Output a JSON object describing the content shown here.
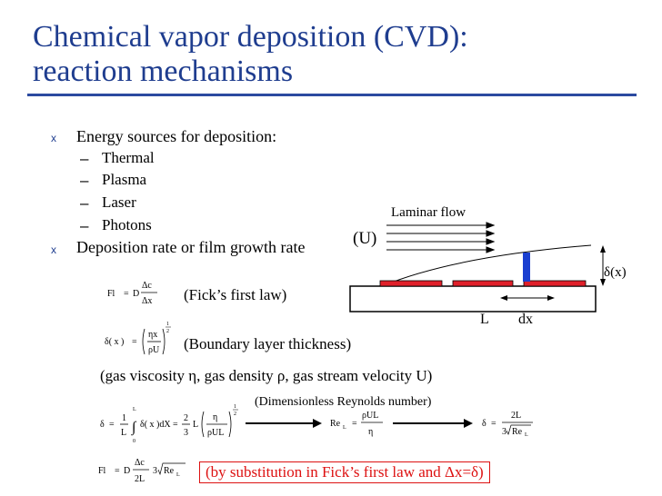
{
  "slide": {
    "title_line1": "Chemical vapor deposition (CVD):",
    "title_line2": "reaction mechanisms",
    "bullet_mark": "x",
    "bullets": [
      {
        "text": "Energy sources for deposition:",
        "sub": [
          "Thermal",
          "Plasma",
          "Laser",
          "Photons"
        ]
      },
      {
        "text": "Deposition rate or film growth rate"
      }
    ],
    "sub_dash": "–",
    "captions": {
      "fick": "(Fick’s first law)",
      "boundary": "(Boundary layer thickness)",
      "gas": "(gas viscosity η, gas density ρ, gas stream velocity U)",
      "reynolds": "(Dimensionless Reynolds number)",
      "substitution": "(by substitution in Fick’s first law and Δx=δ)"
    },
    "diagram": {
      "laminar_flow": "Laminar flow",
      "u_label": "(U)",
      "delta_label": "δ(x)",
      "l_label": "L",
      "dx_label": "dx",
      "colors": {
        "substrate": "#ffffff",
        "film": "#e0202a",
        "probe": "#1a3fd0"
      }
    },
    "equations": {
      "eq1": {
        "lhs": "Fl",
        "eq": "=",
        "d": "D",
        "num": "Δc",
        "den": "Δx"
      },
      "eq2": {
        "lhs": "δ( x )",
        "eq": "=",
        "num": "ηx",
        "den": "ρU",
        "exp_num": "1",
        "exp_den": "2"
      },
      "eq3": {
        "lhs": "δ",
        "eq": "=",
        "one": "1",
        "L": "L",
        "upper": "L",
        "lower": "0",
        "integrand": "δ( x )dX",
        "eq2": "=",
        "two": "2",
        "three": "3",
        "Lc": "L",
        "num": "η",
        "den": "ρUL",
        "exp_num": "1",
        "exp_den": "2"
      },
      "eq4": {
        "lhs": "Re",
        "sub": "L",
        "eq": "=",
        "num": "ρUL",
        "den": "η"
      },
      "eq5": {
        "lhs": "δ",
        "eq": "=",
        "num": "2L",
        "den_pre": "3",
        "den": "Re",
        "den_sub": "L"
      },
      "eq6": {
        "lhs": "Fl",
        "eq": "=",
        "d": "D",
        "num": "Δc",
        "den": "2L",
        "three": "3",
        "re": "Re",
        "re_sub": "L"
      }
    }
  }
}
